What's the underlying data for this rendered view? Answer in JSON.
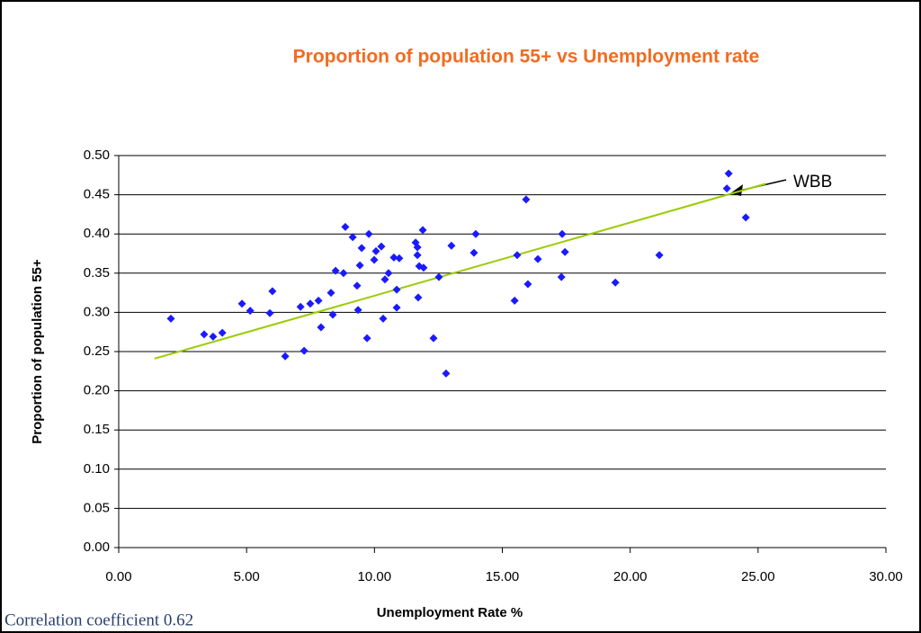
{
  "chart_data": {
    "type": "scatter",
    "title": "Proportion of population 55+ vs Unemployment rate",
    "x_label": "Unemployment Rate %",
    "y_label": "Proportion of population 55+",
    "note": "Correlation coefficient 0.62",
    "annotation": "WBB",
    "color": "#1a1aff",
    "grid": true,
    "x": [
      2.04,
      3.34,
      3.69,
      4.05,
      4.82,
      5.14,
      5.91,
      6.01,
      6.51,
      7.11,
      7.25,
      7.49,
      7.81,
      7.91,
      8.3,
      8.37,
      8.48,
      8.79,
      8.86,
      9.15,
      9.36,
      9.32,
      9.43,
      9.5,
      9.71,
      9.78,
      9.99,
      10.06,
      10.27,
      10.34,
      10.41,
      10.55,
      10.76,
      10.87,
      10.87,
      10.97,
      11.61,
      11.68,
      11.68,
      11.71,
      11.75,
      11.89,
      11.92,
      12.31,
      12.52,
      12.8,
      13.01,
      13.89,
      13.96,
      15.48,
      15.58,
      15.93,
      16.0,
      16.39,
      17.31,
      17.34,
      17.45,
      19.42,
      21.14,
      23.85,
      23.78,
      24.52
    ],
    "values": [
      0.292,
      0.272,
      0.269,
      0.274,
      0.311,
      0.302,
      0.299,
      0.327,
      0.244,
      0.307,
      0.251,
      0.311,
      0.315,
      0.281,
      0.325,
      0.297,
      0.353,
      0.35,
      0.409,
      0.396,
      0.303,
      0.334,
      0.36,
      0.382,
      0.267,
      0.4,
      0.367,
      0.378,
      0.384,
      0.292,
      0.342,
      0.35,
      0.37,
      0.329,
      0.306,
      0.369,
      0.389,
      0.383,
      0.373,
      0.319,
      0.359,
      0.405,
      0.357,
      0.267,
      0.345,
      0.222,
      0.385,
      0.376,
      0.4,
      0.315,
      0.373,
      0.444,
      0.336,
      0.368,
      0.345,
      0.4,
      0.377,
      0.338,
      0.373,
      0.477,
      0.458,
      0.421
    ],
    "trendline": {
      "x": [
        1.4,
        25.3
      ],
      "y": [
        0.241,
        0.464
      ],
      "color": "#99cc00"
    },
    "xlim": [
      0,
      30
    ],
    "xticks": [
      {
        "value": 0,
        "label": "0.00"
      },
      {
        "value": 5,
        "label": "5.00"
      },
      {
        "value": 10,
        "label": "10.00"
      },
      {
        "value": 15,
        "label": "15.00"
      },
      {
        "value": 20,
        "label": "20.00"
      },
      {
        "value": 25,
        "label": "25.00"
      },
      {
        "value": 30,
        "label": "30.00"
      }
    ],
    "ylim": [
      0,
      0.5
    ],
    "yticks": [
      {
        "value": 0,
        "label": "0.00"
      },
      {
        "value": 0.05,
        "label": "0.05"
      },
      {
        "value": 0.1,
        "label": "0.10"
      },
      {
        "value": 0.15,
        "label": "0.15"
      },
      {
        "value": 0.2,
        "label": "0.20"
      },
      {
        "value": 0.25,
        "label": "0.25"
      },
      {
        "value": 0.3,
        "label": "0.30"
      },
      {
        "value": 0.35,
        "label": "0.35"
      },
      {
        "value": 0.4,
        "label": "0.40"
      },
      {
        "value": 0.45,
        "label": "0.45"
      },
      {
        "value": 0.5,
        "label": "0.50"
      }
    ]
  }
}
